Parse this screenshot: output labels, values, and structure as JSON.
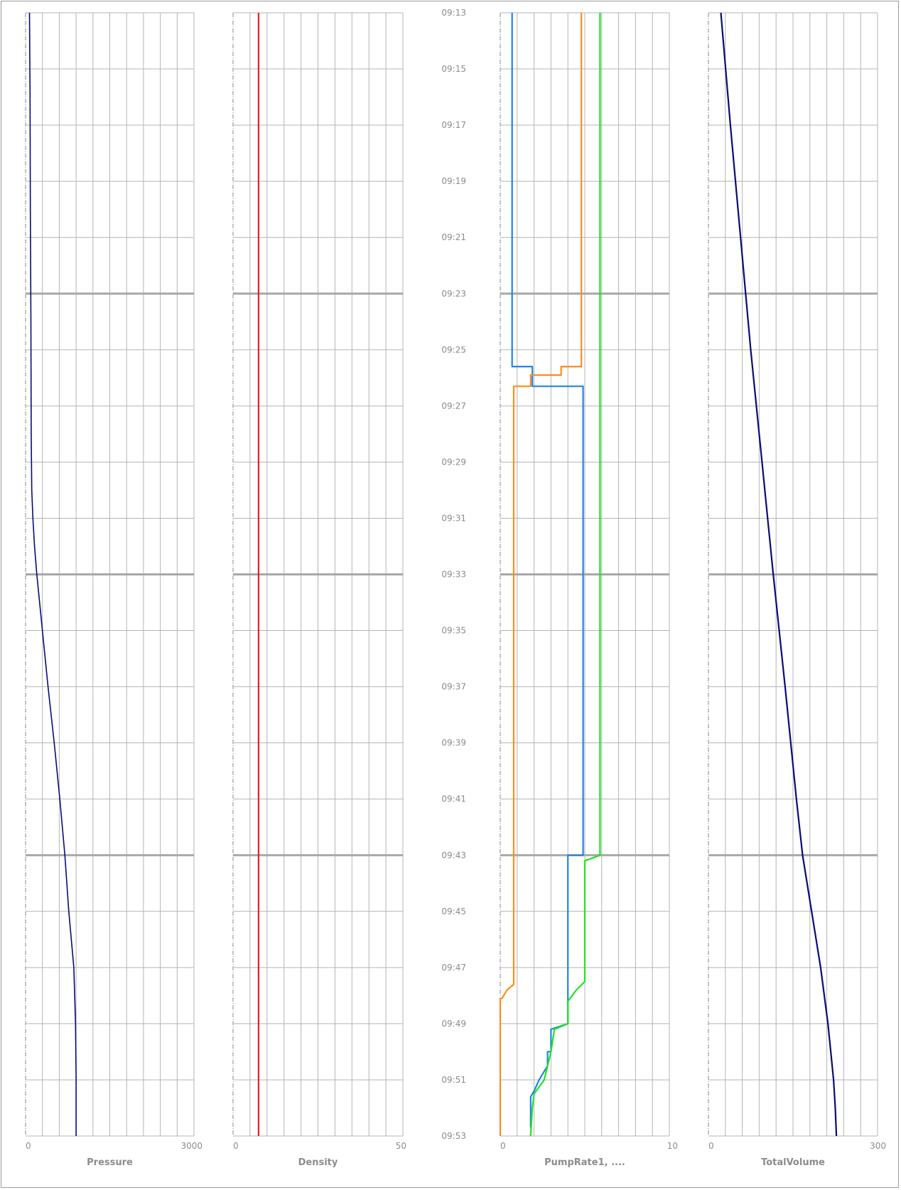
{
  "time_ticks": [
    "09:13",
    "09:15",
    "09:17",
    "09:19",
    "09:21",
    "09:23",
    "09:25",
    "09:27",
    "09:29",
    "09:31",
    "09:33",
    "09:35",
    "09:37",
    "09:39",
    "09:41",
    "09:43",
    "09:45",
    "09:47",
    "09:49",
    "09:51",
    "09:53"
  ],
  "chart_data": [
    {
      "type": "line",
      "xlabel": "Pressure",
      "xlim": [
        0,
        3000
      ],
      "ylim": [
        "09:13",
        "09:53"
      ],
      "grid": true,
      "series": [
        {
          "color": "#0a0a78",
          "points": [
            [
              "09:13",
              70
            ],
            [
              "09:16",
              80
            ],
            [
              "09:20",
              85
            ],
            [
              "09:24",
              95
            ],
            [
              "09:28",
              100
            ],
            [
              "09:30",
              110
            ],
            [
              "09:31",
              130
            ],
            [
              "09:32",
              160
            ],
            [
              "09:33",
              200
            ],
            [
              "09:35",
              300
            ],
            [
              "09:37",
              400
            ],
            [
              "09:39",
              510
            ],
            [
              "09:41",
              610
            ],
            [
              "09:43",
              700
            ],
            [
              "09:45",
              770
            ],
            [
              "09:47",
              860
            ],
            [
              "09:49",
              890
            ],
            [
              "09:51",
              900
            ],
            [
              "09:53",
              900
            ]
          ]
        }
      ]
    },
    {
      "type": "line",
      "xlabel": "Density",
      "xlim": [
        0,
        50
      ],
      "ylim": [
        "09:13",
        "09:53"
      ],
      "grid": true,
      "series": [
        {
          "color": "#e82020",
          "points": [
            [
              "09:13",
              7.5
            ],
            [
              "09:53",
              7.5
            ]
          ]
        }
      ]
    },
    {
      "type": "line",
      "xlabel": "PumpRate1, ....",
      "xlim": [
        0,
        10
      ],
      "ylim": [
        "09:13",
        "09:53"
      ],
      "grid": true,
      "series": [
        {
          "color": "#1e86e6",
          "points": [
            [
              "09:13",
              0.7
            ],
            [
              "09:25.6",
              0.7
            ],
            [
              "09:25.6",
              1.9
            ],
            [
              "09:26.3",
              1.9
            ],
            [
              "09:26.3",
              3.4
            ],
            [
              "09:26.3",
              3.4
            ],
            [
              "09:26.3",
              4.9
            ],
            [
              "09:43",
              4.9
            ],
            [
              "09:43",
              4.0
            ],
            [
              "09:49",
              4.0
            ],
            [
              "09:49.2",
              3.0
            ],
            [
              "09:50",
              3.0
            ],
            [
              "09:50",
              2.8
            ],
            [
              "09:50.5",
              2.8
            ],
            [
              "09:51",
              2.3
            ],
            [
              "09:51.4",
              2.0
            ],
            [
              "09:51.6",
              1.8
            ],
            [
              "09:52.7",
              1.8
            ]
          ]
        },
        {
          "color": "#ff8c1e",
          "points": [
            [
              "09:13",
              4.8
            ],
            [
              "09:25.6",
              4.8
            ],
            [
              "09:25.6",
              3.6
            ],
            [
              "09:25.9",
              3.6
            ],
            [
              "09:25.9",
              1.8
            ],
            [
              "09:26.3",
              1.8
            ],
            [
              "09:26.3",
              0.8
            ],
            [
              "09:47.6",
              0.8
            ],
            [
              "09:47.8",
              0.4
            ],
            [
              "09:48.1",
              0.1
            ],
            [
              "09:48.1",
              0
            ],
            [
              "09:53",
              0
            ]
          ]
        },
        {
          "color": "#22e222",
          "points": [
            [
              "09:13",
              5.9
            ],
            [
              "09:26",
              5.9
            ],
            [
              "09:26.3",
              5.9
            ],
            [
              "09:43",
              5.9
            ],
            [
              "09:43.2",
              5.0
            ],
            [
              "09:47.5",
              5.0
            ],
            [
              "09:47.8",
              4.5
            ],
            [
              "09:48.2",
              4.0
            ],
            [
              "09:49",
              4.0
            ],
            [
              "09:49.2",
              3.2
            ],
            [
              "09:50",
              3.0
            ],
            [
              "09:50.5",
              2.8
            ],
            [
              "09:51",
              2.6
            ],
            [
              "09:51.5",
              2.0
            ],
            [
              "09:52",
              1.9
            ],
            [
              "09:53",
              1.8
            ]
          ]
        }
      ]
    },
    {
      "type": "line",
      "xlabel": "TotalVolume",
      "xlim": [
        0,
        300
      ],
      "ylim": [
        "09:13",
        "09:53"
      ],
      "grid": true,
      "series": [
        {
          "color": "#0a0a78",
          "points": [
            [
              "09:13",
              22
            ],
            [
              "09:17",
              39
            ],
            [
              "09:21",
              57
            ],
            [
              "09:25",
              75
            ],
            [
              "09:29",
              95
            ],
            [
              "09:33",
              115
            ],
            [
              "09:37",
              136
            ],
            [
              "09:41",
              156
            ],
            [
              "09:43",
              167
            ],
            [
              "09:45",
              183
            ],
            [
              "09:47",
              199
            ],
            [
              "09:49",
              212
            ],
            [
              "09:51",
              222
            ],
            [
              "09:52",
              225
            ],
            [
              "09:53",
              227
            ]
          ]
        }
      ]
    }
  ]
}
